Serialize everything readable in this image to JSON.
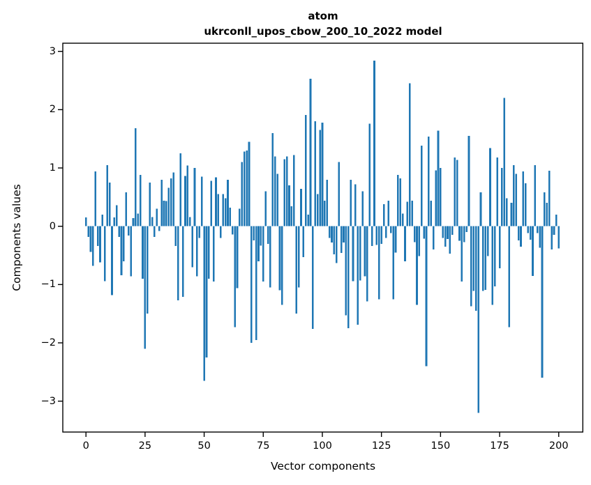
{
  "figure": {
    "title_line1": "atom",
    "title_line2": "ukrconll_upos_cbow_200_10_2022 model",
    "xlabel": "Vector components",
    "ylabel": "Components values",
    "background": "#ffffff",
    "text_color": "#000000",
    "spine_color": "#000000"
  },
  "chart_data": {
    "type": "bar",
    "title": "atom\nukrconll_upos_cbow_200_10_2022 model",
    "xlabel": "Vector components",
    "ylabel": "Components values",
    "bar_color": "#1f77b4",
    "grid": false,
    "legend": null,
    "x_start": 0,
    "xlim": [
      -9.8,
      210.2
    ],
    "ylim": [
      -3.53,
      3.14
    ],
    "x_ticks": [
      0,
      25,
      50,
      75,
      100,
      125,
      150,
      175,
      200
    ],
    "y_ticks": [
      3,
      2,
      1,
      0,
      -1,
      -2,
      -3
    ],
    "values": [
      0.15,
      -0.18,
      -0.44,
      -0.68,
      0.94,
      -0.34,
      -0.62,
      0.2,
      -0.94,
      1.05,
      0.75,
      -1.18,
      0.15,
      0.36,
      -0.18,
      -0.84,
      -0.6,
      0.58,
      -0.16,
      -0.86,
      0.14,
      1.68,
      0.22,
      0.88,
      -0.9,
      -2.1,
      -1.5,
      0.75,
      0.16,
      -0.18,
      0.3,
      -0.08,
      0.8,
      0.44,
      0.43,
      0.66,
      0.82,
      0.92,
      -0.34,
      -1.27,
      1.25,
      -1.21,
      0.86,
      1.04,
      0.16,
      -0.7,
      1.0,
      -0.86,
      -0.2,
      0.85,
      -2.65,
      -2.25,
      -0.9,
      0.78,
      -0.95,
      0.84,
      0.55,
      -0.2,
      0.55,
      0.48,
      0.8,
      0.32,
      -0.14,
      -1.73,
      -1.06,
      0.3,
      1.1,
      1.28,
      1.3,
      1.45,
      -2.0,
      -0.24,
      -1.95,
      -0.6,
      -0.33,
      -0.95,
      0.6,
      -0.3,
      -1.05,
      1.6,
      1.2,
      0.9,
      -1.1,
      -1.35,
      1.15,
      1.2,
      0.7,
      0.34,
      1.22,
      -1.5,
      -1.05,
      0.64,
      -0.53,
      1.91,
      0.2,
      2.53,
      -1.76,
      1.8,
      0.55,
      1.65,
      1.78,
      0.44,
      0.8,
      -0.2,
      -0.28,
      -0.48,
      -0.63,
      1.1,
      -0.46,
      -0.28,
      -1.53,
      -1.75,
      0.8,
      -0.94,
      0.72,
      -1.69,
      -0.93,
      0.6,
      -0.86,
      -1.29,
      1.76,
      -0.34,
      2.84,
      -0.32,
      -1.25,
      -0.3,
      0.38,
      -0.2,
      0.44,
      -0.12,
      -1.25,
      -0.45,
      0.88,
      0.82,
      0.22,
      -0.6,
      0.42,
      2.45,
      0.44,
      -0.27,
      -1.35,
      -0.51,
      1.38,
      -0.21,
      -2.4,
      1.54,
      0.44,
      -0.4,
      0.96,
      1.64,
      1.0,
      -0.2,
      -0.35,
      -0.22,
      -0.47,
      -0.15,
      1.18,
      1.14,
      -0.25,
      -0.95,
      -0.27,
      -0.1,
      1.55,
      -1.37,
      -1.11,
      -1.45,
      -3.2,
      0.58,
      -1.11,
      -1.09,
      -0.51,
      1.34,
      -1.35,
      -1.03,
      1.18,
      -0.72,
      1.0,
      2.2,
      0.48,
      -1.73,
      0.4,
      1.05,
      0.9,
      -0.24,
      -0.35,
      0.94,
      0.74,
      -0.12,
      -0.23,
      -0.85,
      1.05,
      -0.12,
      -0.37,
      -2.6,
      0.58,
      0.4,
      0.95,
      -0.4,
      -0.15,
      0.2,
      -0.38
    ]
  }
}
